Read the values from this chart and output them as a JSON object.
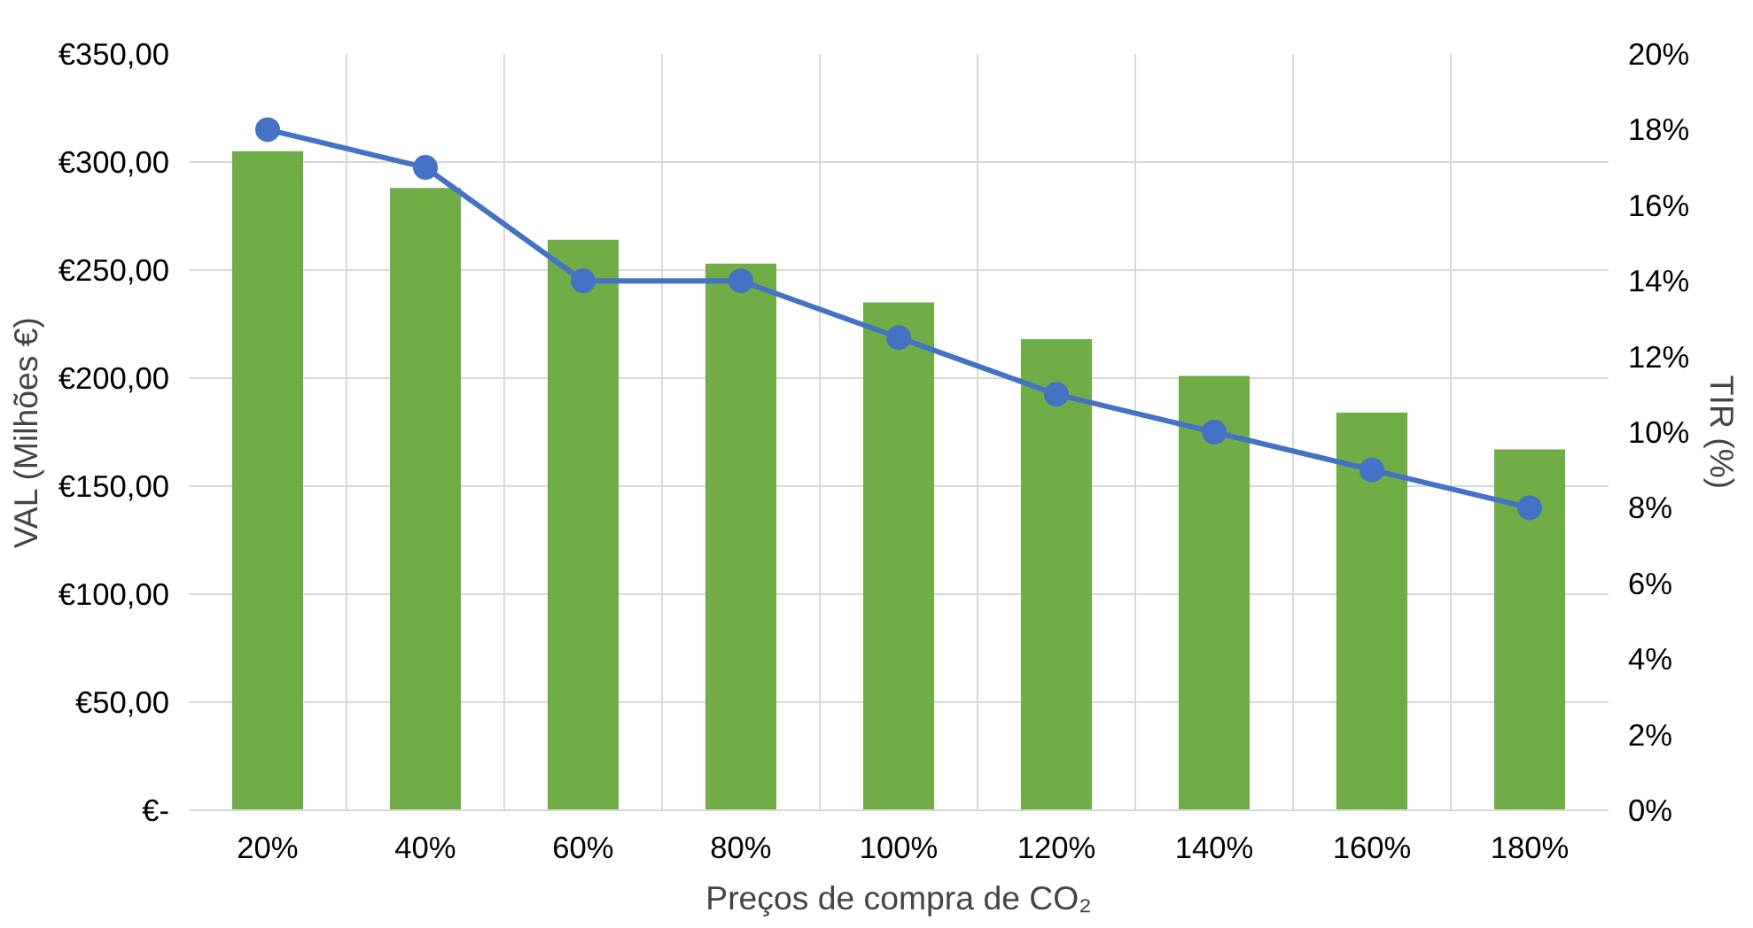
{
  "chart_data": {
    "type": "bar",
    "xlabel": "Preços de compra de CO₂",
    "ylabel": "VAL (Milhões €)",
    "y2label": "TIR (%)",
    "categories": [
      "20%",
      "40%",
      "60%",
      "80%",
      "100%",
      "120%",
      "140%",
      "160%",
      "180%"
    ],
    "series": [
      {
        "color": "#70ad47",
        "values": [
          305,
          288,
          264,
          253,
          235,
          218,
          201,
          184,
          167
        ]
      },
      {
        "type": "line",
        "axis": "y2",
        "color": "#4472c4",
        "marker": "circle",
        "values": [
          18,
          17,
          14,
          14,
          12.5,
          11,
          10,
          9,
          8
        ]
      }
    ],
    "ylim": [
      0,
      350
    ],
    "yticks": [
      {
        "value": 0,
        "label": "€-"
      },
      {
        "value": 50,
        "label": "€50,00"
      },
      {
        "value": 100,
        "label": "€100,00"
      },
      {
        "value": 150,
        "label": "€150,00"
      },
      {
        "value": 200,
        "label": "€200,00"
      },
      {
        "value": 250,
        "label": "€250,00"
      },
      {
        "value": 300,
        "label": "€300,00"
      },
      {
        "value": 350,
        "label": "€350,00"
      }
    ],
    "y2lim": [
      0,
      20
    ],
    "y2ticks": [
      {
        "value": 0,
        "label": "0%"
      },
      {
        "value": 2,
        "label": "2%"
      },
      {
        "value": 4,
        "label": "4%"
      },
      {
        "value": 6,
        "label": "6%"
      },
      {
        "value": 8,
        "label": "8%"
      },
      {
        "value": 10,
        "label": "10%"
      },
      {
        "value": 12,
        "label": "12%"
      },
      {
        "value": 14,
        "label": "14%"
      },
      {
        "value": 16,
        "label": "16%"
      },
      {
        "value": 18,
        "label": "18%"
      },
      {
        "value": 20,
        "label": "20%"
      }
    ],
    "grid": true
  }
}
